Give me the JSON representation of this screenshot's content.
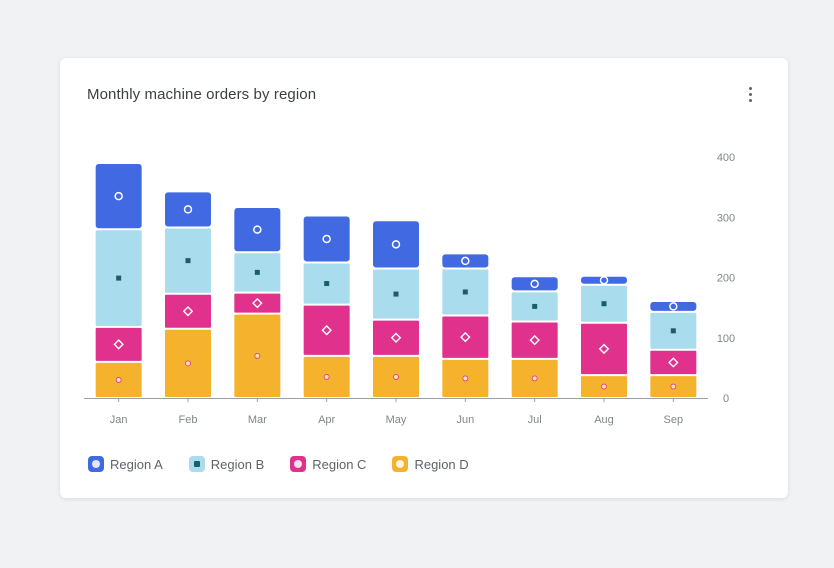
{
  "card": {
    "title": "Monthly machine orders by region",
    "menu_icon": "more-vert-icon"
  },
  "colors": {
    "Region A": "#4169e1",
    "Region B": "#a9dcec",
    "Region C": "#e0328d",
    "Region D": "#f5b22d",
    "axis": "#9aa0a6",
    "tick_text": "#80868b"
  },
  "chart_data": {
    "type": "bar",
    "stacked": true,
    "title": "Monthly machine orders by region",
    "xlabel": "",
    "ylabel": "",
    "y_axis_position": "right",
    "ylim": [
      0,
      400
    ],
    "yticks": [
      0,
      100,
      200,
      300,
      400
    ],
    "grid": false,
    "legend_position": "bottom-left",
    "categories": [
      "Jan",
      "Feb",
      "Mar",
      "Apr",
      "May",
      "Jun",
      "Jul",
      "Aug",
      "Sep"
    ],
    "series": [
      {
        "name": "Region D",
        "values": [
          60,
          115,
          140,
          70,
          70,
          65,
          65,
          38,
          38
        ]
      },
      {
        "name": "Region C",
        "values": [
          58,
          58,
          35,
          85,
          60,
          72,
          62,
          87,
          42
        ]
      },
      {
        "name": "Region B",
        "values": [
          162,
          110,
          67,
          70,
          85,
          78,
          50,
          63,
          63
        ]
      },
      {
        "name": "Region A",
        "values": [
          110,
          60,
          75,
          78,
          80,
          25,
          25,
          15,
          18
        ]
      }
    ]
  }
}
